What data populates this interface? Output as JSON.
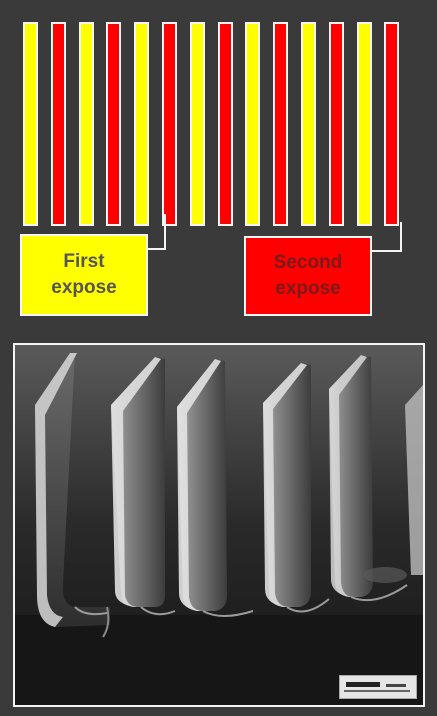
{
  "diagram": {
    "stripes": [
      "yellow",
      "red",
      "yellow",
      "red",
      "yellow",
      "red",
      "yellow",
      "red",
      "yellow",
      "red",
      "yellow",
      "red",
      "yellow",
      "red"
    ],
    "colors": {
      "yellow": "#ffff00",
      "red": "#ff0000",
      "background": "#3a3a3a",
      "outline": "#f4f4f4"
    },
    "first_expose": {
      "line1": "First",
      "line2": "expose",
      "color": "#ffff00",
      "text_color": "#555555"
    },
    "second_expose": {
      "line1": "Second",
      "line2": "expose",
      "color": "#ff0000",
      "text_color": "#7a1a1a"
    }
  },
  "micrograph": {
    "description_icon": "sem-image",
    "scale_bar_icon": "scale-bar-icon"
  }
}
